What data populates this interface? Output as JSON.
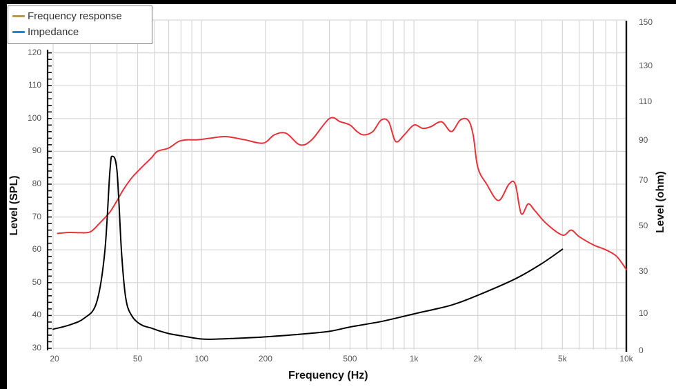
{
  "legend": {
    "items": [
      {
        "label": "Frequency response",
        "color": "#b8965a"
      },
      {
        "label": "Impedance",
        "color": "#1e88d8"
      }
    ]
  },
  "axes": {
    "x_title": "Frequency (Hz)",
    "y_left_title": "Level (SPL)",
    "y_right_title": "Level (ohm)",
    "x_ticks": [
      "20",
      "50",
      "100",
      "200",
      "500",
      "1k",
      "2k",
      "5k",
      "10k"
    ],
    "y_left_ticks": [
      "120",
      "110",
      "100",
      "90",
      "80",
      "70",
      "60",
      "50",
      "40",
      "30"
    ],
    "y_right_ticks": [
      "150",
      "130",
      "110",
      "90",
      "70",
      "50",
      "30",
      "10",
      "0"
    ]
  },
  "chart_data": {
    "type": "line",
    "title": "",
    "xlabel": "Frequency (Hz)",
    "ylabel": "Level (SPL)",
    "ylabel_right": "Level (ohm)",
    "xscale": "log",
    "xlim": [
      20,
      10000
    ],
    "ylim": [
      30,
      130
    ],
    "ylim_right": [
      0,
      150
    ],
    "grid": true,
    "legend_position": "top-left",
    "series": [
      {
        "name": "Frequency response (SPL)",
        "color": "#e8323a",
        "axis": "left",
        "x": [
          21,
          24,
          27,
          30,
          33,
          37,
          40,
          43,
          47,
          52,
          58,
          62,
          70,
          78,
          85,
          95,
          110,
          130,
          160,
          195,
          220,
          250,
          290,
          330,
          400,
          450,
          500,
          540,
          580,
          640,
          700,
          760,
          820,
          900,
          1000,
          1100,
          1200,
          1350,
          1500,
          1650,
          1800,
          1900,
          2000,
          2200,
          2500,
          2800,
          3000,
          3200,
          3450,
          3700,
          4200,
          5000,
          5500,
          6000,
          7000,
          8000,
          9000,
          10000
        ],
        "y": [
          65,
          65.3,
          65.2,
          65.5,
          68,
          71.5,
          75,
          78.5,
          82,
          85,
          88,
          90,
          91,
          93,
          93.5,
          93.5,
          94,
          94.5,
          93.5,
          92.5,
          95,
          95.5,
          92,
          93.5,
          100,
          99,
          98,
          96,
          95,
          96,
          99.5,
          99,
          93,
          95,
          98,
          97,
          97.5,
          99,
          96,
          99.5,
          99.5,
          95,
          85,
          80,
          75,
          80,
          80,
          71,
          74,
          72,
          68,
          64.5,
          66,
          64,
          61.5,
          60,
          58,
          54
        ]
      },
      {
        "name": "Impedance (ohm)",
        "color": "#000000",
        "axis": "right",
        "x": [
          20,
          24,
          28,
          32,
          35,
          37,
          38,
          40,
          42,
          44,
          47,
          52,
          58,
          62,
          70,
          80,
          100,
          120,
          160,
          200,
          300,
          400,
          500,
          700,
          1000,
          1500,
          2000,
          3000,
          4000,
          5000
        ],
        "y": [
          10,
          12,
          15,
          22,
          45,
          82,
          89,
          82,
          45,
          24,
          16,
          12,
          10.5,
          9.5,
          8,
          7,
          5.5,
          5.5,
          6,
          6.5,
          7.8,
          9,
          11,
          13.5,
          17,
          21,
          25.5,
          33,
          40,
          46.5
        ]
      }
    ]
  }
}
